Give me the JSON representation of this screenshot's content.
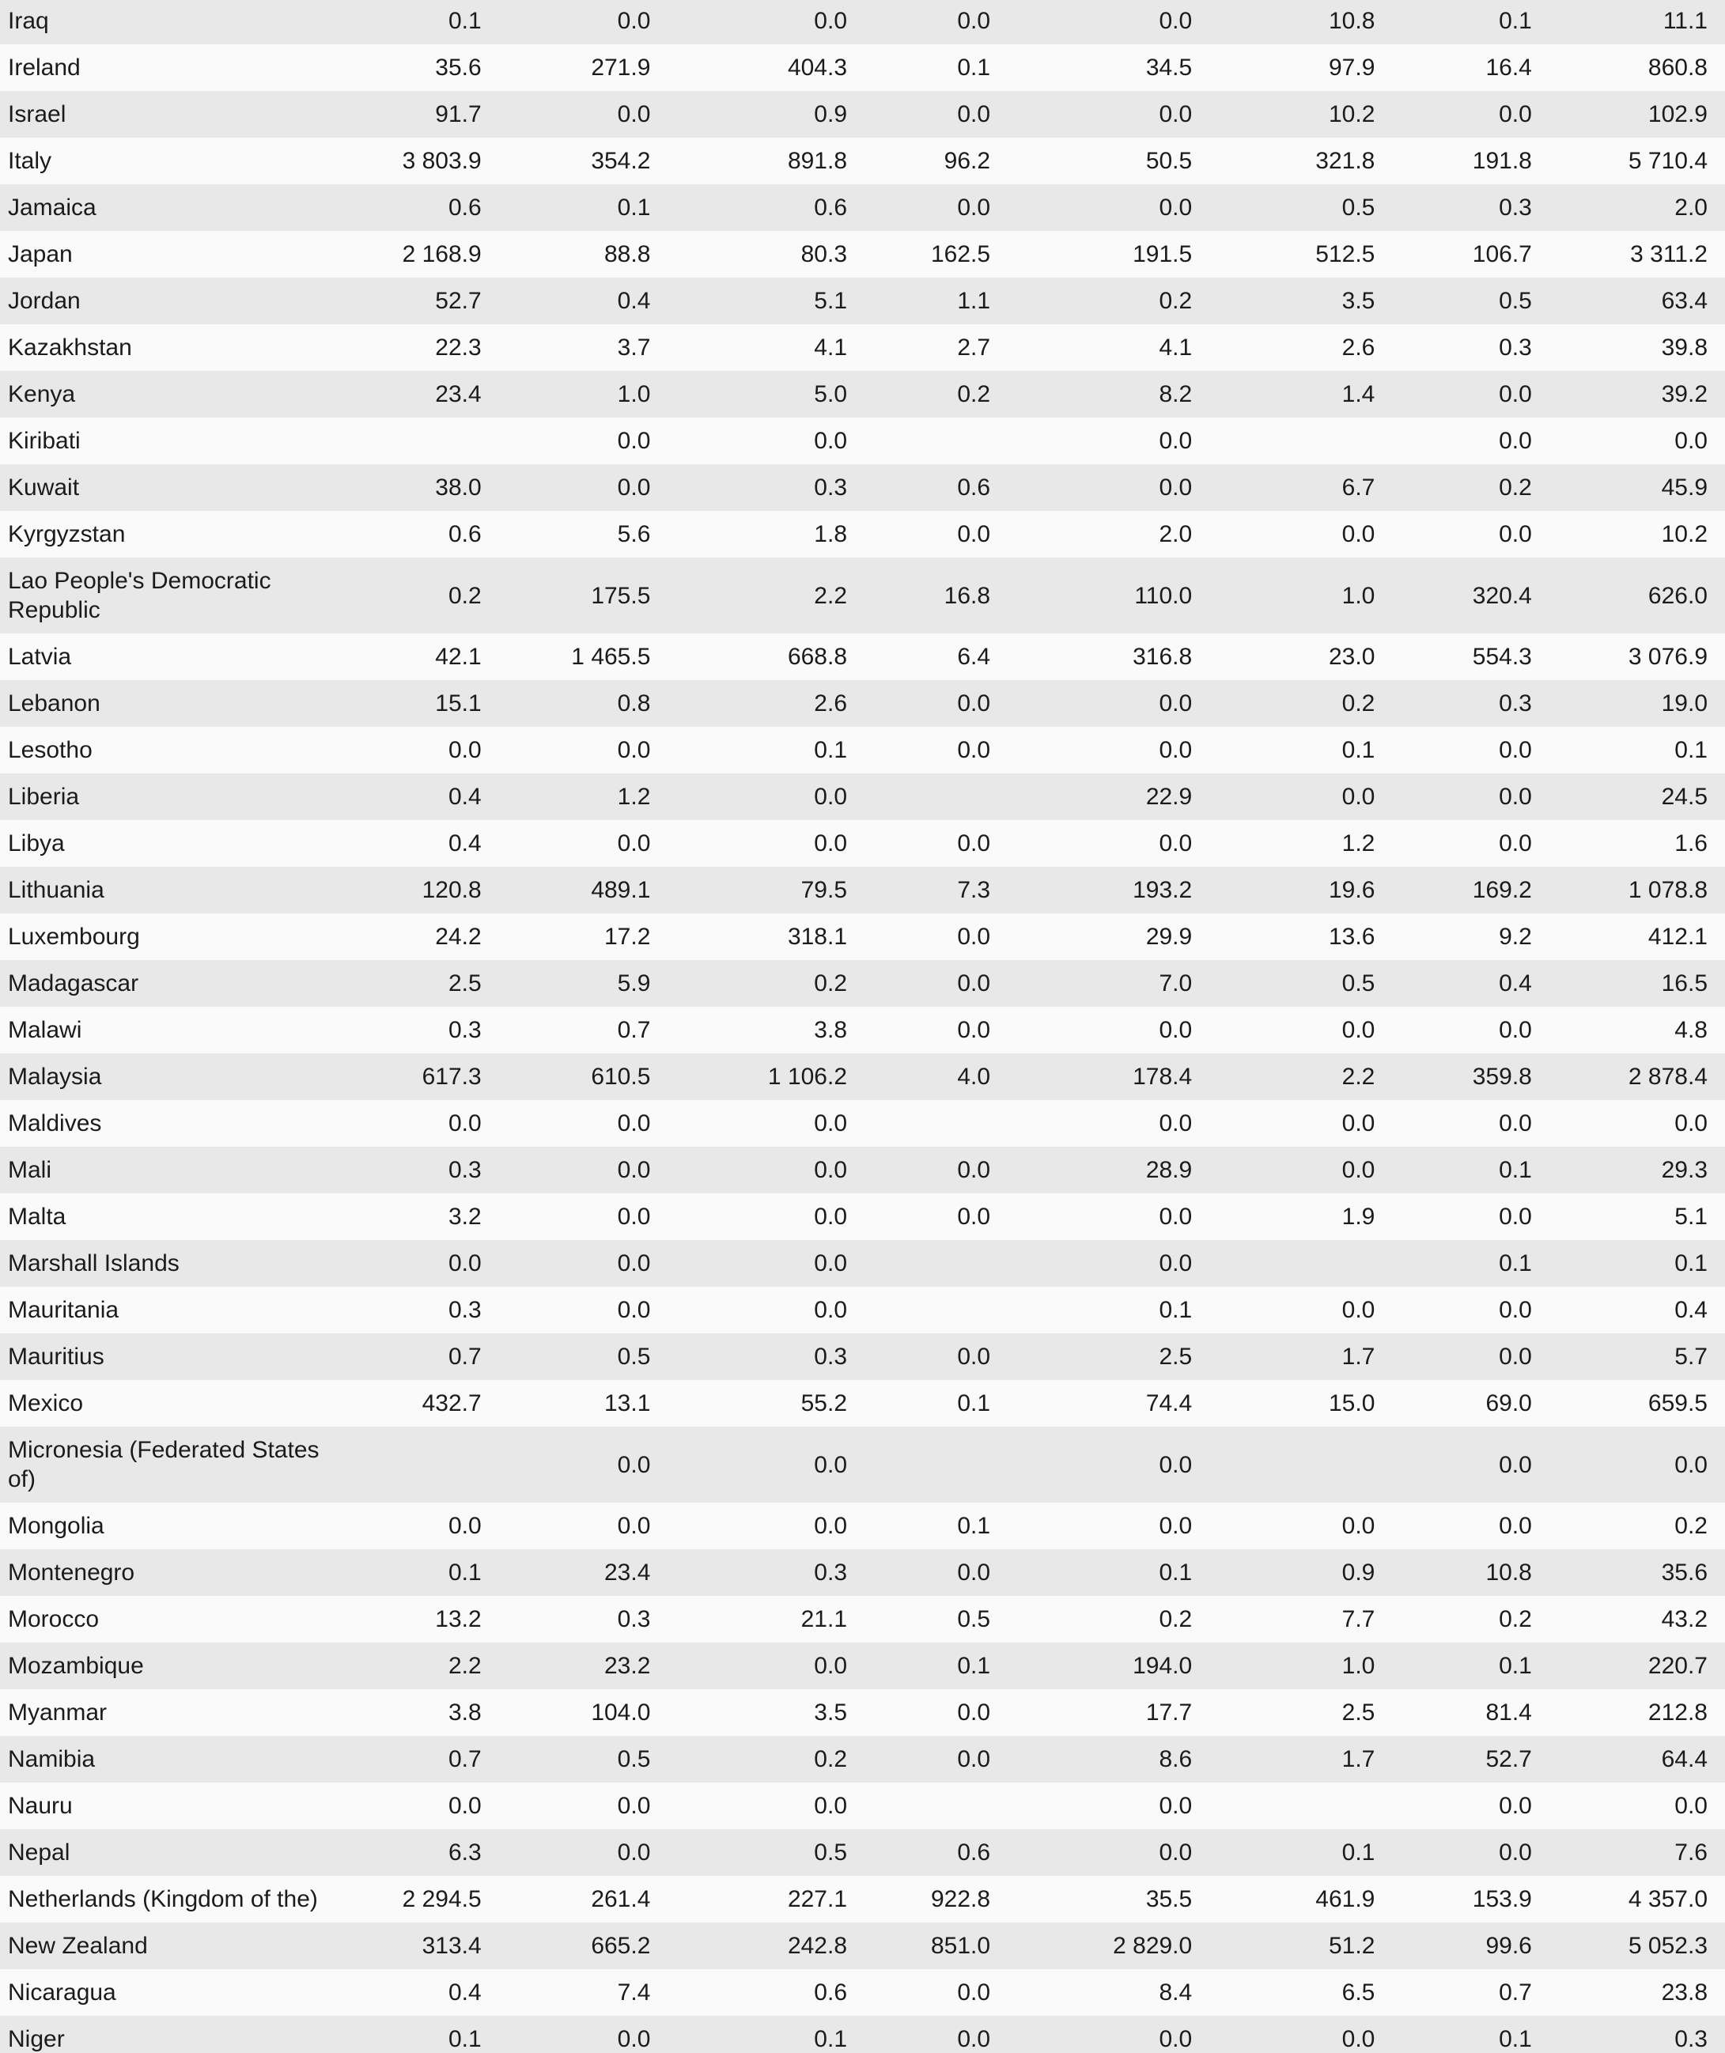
{
  "style": {
    "row_alt_color": "#e8e8e8",
    "row_base_color": "#fafafa",
    "text_color": "#1b1b1b"
  },
  "table": {
    "description": "Country data table, 8 numeric value columns, no headers visible",
    "value_column_count": 8,
    "rows": [
      {
        "country": "Iraq",
        "values": [
          "0.1",
          "0.0",
          "0.0",
          "0.0",
          "0.0",
          "10.8",
          "0.1",
          "11.1"
        ]
      },
      {
        "country": "Ireland",
        "values": [
          "35.6",
          "271.9",
          "404.3",
          "0.1",
          "34.5",
          "97.9",
          "16.4",
          "860.8"
        ]
      },
      {
        "country": "Israel",
        "values": [
          "91.7",
          "0.0",
          "0.9",
          "0.0",
          "0.0",
          "10.2",
          "0.0",
          "102.9"
        ]
      },
      {
        "country": "Italy",
        "values": [
          "3 803.9",
          "354.2",
          "891.8",
          "96.2",
          "50.5",
          "321.8",
          "191.8",
          "5 710.4"
        ]
      },
      {
        "country": "Jamaica",
        "values": [
          "0.6",
          "0.1",
          "0.6",
          "0.0",
          "0.0",
          "0.5",
          "0.3",
          "2.0"
        ]
      },
      {
        "country": "Japan",
        "values": [
          "2 168.9",
          "88.8",
          "80.3",
          "162.5",
          "191.5",
          "512.5",
          "106.7",
          "3 311.2"
        ]
      },
      {
        "country": "Jordan",
        "values": [
          "52.7",
          "0.4",
          "5.1",
          "1.1",
          "0.2",
          "3.5",
          "0.5",
          "63.4"
        ]
      },
      {
        "country": "Kazakhstan",
        "values": [
          "22.3",
          "3.7",
          "4.1",
          "2.7",
          "4.1",
          "2.6",
          "0.3",
          "39.8"
        ]
      },
      {
        "country": "Kenya",
        "values": [
          "23.4",
          "1.0",
          "5.0",
          "0.2",
          "8.2",
          "1.4",
          "0.0",
          "39.2"
        ]
      },
      {
        "country": "Kiribati",
        "values": [
          "",
          "0.0",
          "0.0",
          "",
          "0.0",
          "",
          "0.0",
          "0.0"
        ]
      },
      {
        "country": "Kuwait",
        "values": [
          "38.0",
          "0.0",
          "0.3",
          "0.6",
          "0.0",
          "6.7",
          "0.2",
          "45.9"
        ]
      },
      {
        "country": "Kyrgyzstan",
        "values": [
          "0.6",
          "5.6",
          "1.8",
          "0.0",
          "2.0",
          "0.0",
          "0.0",
          "10.2"
        ]
      },
      {
        "country": "Lao People's Democratic Republic",
        "values": [
          "0.2",
          "175.5",
          "2.2",
          "16.8",
          "110.0",
          "1.0",
          "320.4",
          "626.0"
        ]
      },
      {
        "country": "Latvia",
        "values": [
          "42.1",
          "1 465.5",
          "668.8",
          "6.4",
          "316.8",
          "23.0",
          "554.3",
          "3 076.9"
        ]
      },
      {
        "country": "Lebanon",
        "values": [
          "15.1",
          "0.8",
          "2.6",
          "0.0",
          "0.0",
          "0.2",
          "0.3",
          "19.0"
        ]
      },
      {
        "country": "Lesotho",
        "values": [
          "0.0",
          "0.0",
          "0.1",
          "0.0",
          "0.0",
          "0.1",
          "0.0",
          "0.1"
        ]
      },
      {
        "country": "Liberia",
        "values": [
          "0.4",
          "1.2",
          "0.0",
          "",
          "22.9",
          "0.0",
          "0.0",
          "24.5"
        ]
      },
      {
        "country": "Libya",
        "values": [
          "0.4",
          "0.0",
          "0.0",
          "0.0",
          "0.0",
          "1.2",
          "0.0",
          "1.6"
        ]
      },
      {
        "country": "Lithuania",
        "values": [
          "120.8",
          "489.1",
          "79.5",
          "7.3",
          "193.2",
          "19.6",
          "169.2",
          "1 078.8"
        ]
      },
      {
        "country": "Luxembourg",
        "values": [
          "24.2",
          "17.2",
          "318.1",
          "0.0",
          "29.9",
          "13.6",
          "9.2",
          "412.1"
        ]
      },
      {
        "country": "Madagascar",
        "values": [
          "2.5",
          "5.9",
          "0.2",
          "0.0",
          "7.0",
          "0.5",
          "0.4",
          "16.5"
        ]
      },
      {
        "country": "Malawi",
        "values": [
          "0.3",
          "0.7",
          "3.8",
          "0.0",
          "0.0",
          "0.0",
          "0.0",
          "4.8"
        ]
      },
      {
        "country": "Malaysia",
        "values": [
          "617.3",
          "610.5",
          "1 106.2",
          "4.0",
          "178.4",
          "2.2",
          "359.8",
          "2 878.4"
        ]
      },
      {
        "country": "Maldives",
        "values": [
          "0.0",
          "0.0",
          "0.0",
          "",
          "0.0",
          "0.0",
          "0.0",
          "0.0"
        ]
      },
      {
        "country": "Mali",
        "values": [
          "0.3",
          "0.0",
          "0.0",
          "0.0",
          "28.9",
          "0.0",
          "0.1",
          "29.3"
        ]
      },
      {
        "country": "Malta",
        "values": [
          "3.2",
          "0.0",
          "0.0",
          "0.0",
          "0.0",
          "1.9",
          "0.0",
          "5.1"
        ]
      },
      {
        "country": "Marshall Islands",
        "values": [
          "0.0",
          "0.0",
          "0.0",
          "",
          "0.0",
          "",
          "0.1",
          "0.1"
        ]
      },
      {
        "country": "Mauritania",
        "values": [
          "0.3",
          "0.0",
          "0.0",
          "",
          "0.1",
          "0.0",
          "0.0",
          "0.4"
        ]
      },
      {
        "country": "Mauritius",
        "values": [
          "0.7",
          "0.5",
          "0.3",
          "0.0",
          "2.5",
          "1.7",
          "0.0",
          "5.7"
        ]
      },
      {
        "country": "Mexico",
        "values": [
          "432.7",
          "13.1",
          "55.2",
          "0.1",
          "74.4",
          "15.0",
          "69.0",
          "659.5"
        ]
      },
      {
        "country": "Micronesia (Federated States of)",
        "values": [
          "",
          "0.0",
          "0.0",
          "",
          "0.0",
          "",
          "0.0",
          "0.0"
        ]
      },
      {
        "country": "Mongolia",
        "values": [
          "0.0",
          "0.0",
          "0.0",
          "0.1",
          "0.0",
          "0.0",
          "0.0",
          "0.2"
        ]
      },
      {
        "country": "Montenegro",
        "values": [
          "0.1",
          "23.4",
          "0.3",
          "0.0",
          "0.1",
          "0.9",
          "10.8",
          "35.6"
        ]
      },
      {
        "country": "Morocco",
        "values": [
          "13.2",
          "0.3",
          "21.1",
          "0.5",
          "0.2",
          "7.7",
          "0.2",
          "43.2"
        ]
      },
      {
        "country": "Mozambique",
        "values": [
          "2.2",
          "23.2",
          "0.0",
          "0.1",
          "194.0",
          "1.0",
          "0.1",
          "220.7"
        ]
      },
      {
        "country": "Myanmar",
        "values": [
          "3.8",
          "104.0",
          "3.5",
          "0.0",
          "17.7",
          "2.5",
          "81.4",
          "212.8"
        ]
      },
      {
        "country": "Namibia",
        "values": [
          "0.7",
          "0.5",
          "0.2",
          "0.0",
          "8.6",
          "1.7",
          "52.7",
          "64.4"
        ]
      },
      {
        "country": "Nauru",
        "values": [
          "0.0",
          "0.0",
          "0.0",
          "",
          "0.0",
          "",
          "0.0",
          "0.0"
        ]
      },
      {
        "country": "Nepal",
        "values": [
          "6.3",
          "0.0",
          "0.5",
          "0.6",
          "0.0",
          "0.1",
          "0.0",
          "7.6"
        ]
      },
      {
        "country": "Netherlands (Kingdom of the)",
        "values": [
          "2 294.5",
          "261.4",
          "227.1",
          "922.8",
          "35.5",
          "461.9",
          "153.9",
          "4 357.0"
        ]
      },
      {
        "country": "New Zealand",
        "values": [
          "313.4",
          "665.2",
          "242.8",
          "851.0",
          "2 829.0",
          "51.2",
          "99.6",
          "5 052.3"
        ]
      },
      {
        "country": "Nicaragua",
        "values": [
          "0.4",
          "7.4",
          "0.6",
          "0.0",
          "8.4",
          "6.5",
          "0.7",
          "23.8"
        ]
      },
      {
        "country": "Niger",
        "values": [
          "0.1",
          "0.0",
          "0.1",
          "0.0",
          "0.0",
          "0.0",
          "0.1",
          "0.3"
        ]
      }
    ]
  }
}
